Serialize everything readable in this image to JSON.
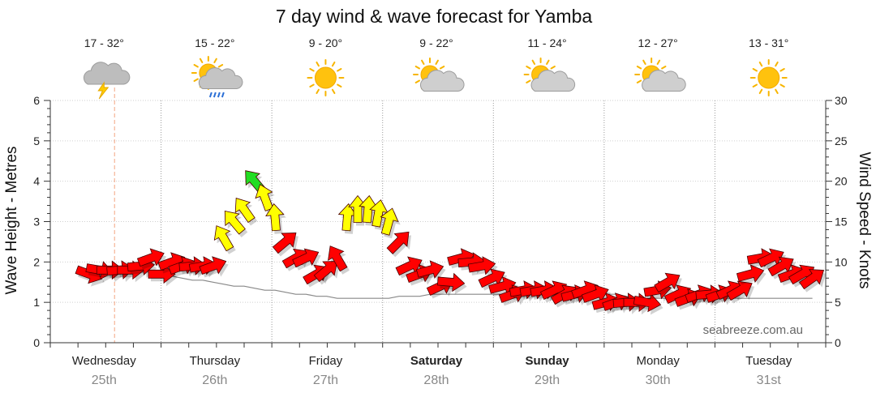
{
  "chart_data": {
    "type": "line",
    "title": "7 day wind & wave forecast for Yamba",
    "ylabel_left": "Wave Height - Metres",
    "ylabel_right": "Wind Speed - Knots",
    "ylim_left": [
      0,
      6
    ],
    "ylim_right": [
      0,
      30
    ],
    "yticks_left": [
      "0",
      "1",
      "2",
      "3",
      "4",
      "5",
      "6"
    ],
    "yticks_right": [
      "0",
      "5",
      "10",
      "15",
      "20",
      "25",
      "30"
    ],
    "days": [
      {
        "name": "Wednesday",
        "date": "25th",
        "temp": "17 - 32°",
        "icon": "storm-cloud-icon",
        "bold": false
      },
      {
        "name": "Thursday",
        "date": "26th",
        "temp": "15 - 22°",
        "icon": "sun-cloud-rain-icon",
        "bold": false
      },
      {
        "name": "Friday",
        "date": "27th",
        "temp": "9 - 20°",
        "icon": "sun-icon",
        "bold": false
      },
      {
        "name": "Saturday",
        "date": "28th",
        "temp": "9 - 22°",
        "icon": "sun-cloud-icon",
        "bold": true
      },
      {
        "name": "Sunday",
        "date": "29th",
        "temp": "11 - 24°",
        "icon": "sun-cloud-icon",
        "bold": true
      },
      {
        "name": "Monday",
        "date": "30th",
        "temp": "12 - 27°",
        "icon": "sun-cloud-icon",
        "bold": false
      },
      {
        "name": "Tuesday",
        "date": "31st",
        "temp": "13 - 31°",
        "icon": "sun-icon",
        "bold": false
      }
    ],
    "series": [
      {
        "name": "Wave Height",
        "values": [
          1.6,
          1.65,
          1.7,
          1.75,
          1.75,
          1.75,
          1.75,
          1.7,
          1.65,
          1.6,
          1.55,
          1.55,
          1.5,
          1.45,
          1.4,
          1.4,
          1.35,
          1.3,
          1.3,
          1.25,
          1.2,
          1.2,
          1.15,
          1.15,
          1.1,
          1.1,
          1.1,
          1.1,
          1.1,
          1.1,
          1.15,
          1.15,
          1.15,
          1.2,
          1.2,
          1.2,
          1.2,
          1.2,
          1.2,
          1.2,
          1.2,
          1.2,
          1.2,
          1.2,
          1.2,
          1.2,
          1.25,
          1.25,
          1.25,
          1.2,
          1.2,
          1.2,
          1.15,
          1.1,
          1.1,
          1.1,
          1.1,
          1.1,
          1.1,
          1.1,
          1.1,
          1.1,
          1.1,
          1.1,
          1.1,
          1.1,
          1.1,
          1.1,
          1.1,
          1.1,
          1.1
        ]
      },
      {
        "name": "Wind",
        "values": [
          8.5,
          9.0,
          9.0,
          9.0,
          9.0,
          9.5,
          10.5,
          8.5,
          10.0,
          9.5,
          9.5,
          9.5,
          9.5,
          13.0,
          15.0,
          16.5,
          20.0,
          18.0,
          15.5,
          12.5,
          10.5,
          10.5,
          8.5,
          9.0,
          10.5,
          15.5,
          16.5,
          16.5,
          16.0,
          15.0,
          12.5,
          9.5,
          8.5,
          9.0,
          7.0,
          7.5,
          10.5,
          10.0,
          9.5,
          8.0,
          7.0,
          6.0,
          6.5,
          6.5,
          6.5,
          6.5,
          6.0,
          6.0,
          6.5,
          6.0,
          5.0,
          5.0,
          5.0,
          5.0,
          5.0,
          6.5,
          7.5,
          6.0,
          5.5,
          6.0,
          6.0,
          6.0,
          6.5,
          6.5,
          8.5,
          10.5,
          10.5,
          9.5,
          8.5,
          8.5,
          8.0
        ]
      },
      {
        "name": "Wind Direction",
        "values": [
          70,
          80,
          90,
          95,
          90,
          95,
          110,
          90,
          110,
          110,
          95,
          100,
          110,
          210,
          220,
          215,
          220,
          200,
          185,
          130,
          120,
          115,
          120,
          130,
          210,
          175,
          180,
          175,
          170,
          165,
          135,
          115,
          110,
          105,
          115,
          85,
          105,
          95,
          100,
          115,
          105,
          110,
          100,
          100,
          100,
          115,
          120,
          105,
          110,
          110,
          105,
          110,
          95,
          90,
          80,
          100,
          120,
          115,
          110,
          110,
          95,
          110,
          115,
          120,
          105,
          100,
          115,
          120,
          110,
          120,
          125
        ]
      }
    ],
    "wind_colors": {
      "light": "#ff0000",
      "moderate": "#ffff00",
      "strong": "#22dd22"
    },
    "grid": true,
    "watermark": "seabreeze.com.au"
  }
}
